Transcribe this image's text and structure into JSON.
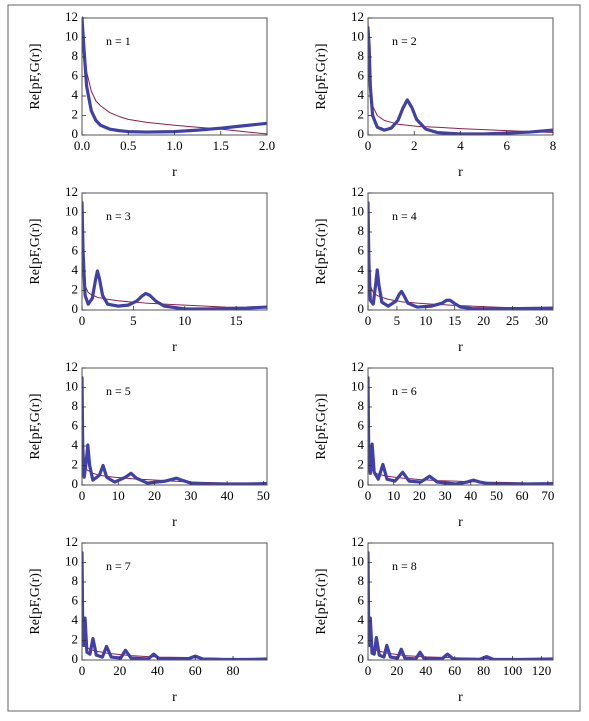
{
  "chart_data": [
    {
      "type": "line",
      "annotation": "n = 1",
      "xlabel": "r",
      "ylabel": "Re[pF,G(r)]",
      "xlim": [
        0,
        2
      ],
      "xticks": [
        {
          "value": 0,
          "label": "0.0"
        },
        {
          "value": 0.5,
          "label": "0.5"
        },
        {
          "value": 1,
          "label": "1.0"
        },
        {
          "value": 1.5,
          "label": "1.5"
        },
        {
          "value": 2,
          "label": "2.0"
        }
      ],
      "ylim": [
        0,
        12
      ],
      "yticks": [
        0,
        2,
        4,
        6,
        8,
        10,
        12
      ],
      "x": [
        0,
        0.02,
        0.05,
        0.1,
        0.15,
        0.2,
        0.3,
        0.4,
        0.5,
        0.7,
        1.0,
        1.25,
        1.5,
        1.75,
        2.0
      ],
      "series": [
        {
          "color": "#8b2252",
          "values": [
            12,
            10,
            6.5,
            4.5,
            3.5,
            3,
            2.3,
            1.9,
            1.6,
            1.3,
            1.0,
            0.8,
            0.6,
            0.35,
            0.1
          ]
        },
        {
          "color": "#4040a8",
          "values": [
            12,
            9,
            5,
            2.5,
            1.5,
            1,
            0.6,
            0.45,
            0.35,
            0.3,
            0.35,
            0.5,
            0.7,
            0.95,
            1.2
          ]
        }
      ]
    },
    {
      "type": "line",
      "annotation": "n = 2",
      "xlabel": "r",
      "ylabel": "Re[pF,G(r)]",
      "xlim": [
        0,
        8
      ],
      "xticks": [
        0,
        2,
        4,
        6,
        8
      ],
      "ylim": [
        0,
        12
      ],
      "yticks": [
        0,
        2,
        4,
        6,
        8,
        10,
        12
      ],
      "x": [
        0,
        0.05,
        0.1,
        0.2,
        0.4,
        0.7,
        1.0,
        1.3,
        1.5,
        1.7,
        1.9,
        2.1,
        2.5,
        3,
        4,
        5,
        6,
        7,
        8
      ],
      "series": [
        {
          "color": "#8b2252",
          "values": [
            12,
            8,
            5,
            3,
            2,
            1.5,
            1.3,
            1.1,
            1.05,
            1.0,
            0.95,
            0.9,
            0.85,
            0.8,
            0.65,
            0.55,
            0.45,
            0.35,
            0.25
          ]
        },
        {
          "color": "#4040a8",
          "values": [
            11,
            9,
            5,
            2,
            0.8,
            0.5,
            0.7,
            1.5,
            2.7,
            3.6,
            2.8,
            1.6,
            0.6,
            0.25,
            0.1,
            0.1,
            0.2,
            0.3,
            0.5
          ]
        }
      ]
    },
    {
      "type": "line",
      "annotation": "n = 3",
      "xlabel": "r",
      "ylabel": "Re[pF,G(r)]",
      "xlim": [
        0,
        18
      ],
      "xticks": [
        0,
        5,
        10,
        15
      ],
      "ylim": [
        0,
        12
      ],
      "yticks": [
        0,
        2,
        4,
        6,
        8,
        10,
        12
      ],
      "x": [
        0,
        0.1,
        0.3,
        0.6,
        1.0,
        1.3,
        1.5,
        1.7,
        2.0,
        2.5,
        3.5,
        4.5,
        5.3,
        5.8,
        6.2,
        6.6,
        7.2,
        8,
        10,
        12,
        14,
        16,
        18
      ],
      "series": [
        {
          "color": "#8b2252",
          "values": [
            12,
            5,
            2.5,
            1.8,
            1.5,
            1.4,
            1.3,
            1.25,
            1.2,
            1.1,
            0.95,
            0.85,
            0.8,
            0.75,
            0.7,
            0.68,
            0.65,
            0.6,
            0.5,
            0.4,
            0.3,
            0.25,
            0.2
          ]
        },
        {
          "color": "#4040a8",
          "values": [
            11,
            6,
            1.5,
            0.6,
            1.2,
            3,
            4,
            3.2,
            1.5,
            0.6,
            0.4,
            0.5,
            0.9,
            1.4,
            1.7,
            1.5,
            0.9,
            0.4,
            0.1,
            0.1,
            0.15,
            0.2,
            0.3
          ]
        }
      ]
    },
    {
      "type": "line",
      "annotation": "n = 4",
      "xlabel": "r",
      "ylabel": "Re[pF,G(r)]",
      "xlim": [
        0,
        32
      ],
      "xticks": [
        0,
        5,
        10,
        15,
        20,
        25,
        30
      ],
      "ylim": [
        0,
        12
      ],
      "yticks": [
        0,
        2,
        4,
        6,
        8,
        10,
        12
      ],
      "x": [
        0,
        0.15,
        0.4,
        0.9,
        1.3,
        1.6,
        1.9,
        2.4,
        3.5,
        4.8,
        5.4,
        5.8,
        6.2,
        6.9,
        8.5,
        11,
        12.8,
        13.6,
        14.2,
        14.9,
        16,
        18,
        22,
        26,
        32
      ],
      "series": [
        {
          "color": "#8b2252",
          "values": [
            12,
            4,
            2.5,
            1.8,
            1.6,
            1.5,
            1.4,
            1.3,
            1.1,
            0.95,
            0.9,
            0.85,
            0.82,
            0.8,
            0.7,
            0.6,
            0.55,
            0.52,
            0.5,
            0.48,
            0.45,
            0.4,
            0.3,
            0.2,
            0.1
          ]
        },
        {
          "color": "#4040a8",
          "values": [
            11,
            5,
            1,
            0.6,
            2.5,
            4.1,
            2.5,
            0.8,
            0.4,
            0.9,
            1.6,
            1.9,
            1.5,
            0.7,
            0.3,
            0.4,
            0.7,
            1.0,
            1.0,
            0.7,
            0.3,
            0.15,
            0.1,
            0.15,
            0.2
          ]
        }
      ]
    },
    {
      "type": "line",
      "annotation": "n = 5",
      "xlabel": "r",
      "ylabel": "Re[pF,G(r)]",
      "xlim": [
        0,
        51
      ],
      "xticks": [
        0,
        10,
        20,
        30,
        40,
        50
      ],
      "ylim": [
        0,
        12
      ],
      "yticks": [
        0,
        2,
        4,
        6,
        8,
        10,
        12
      ],
      "x": [
        0,
        0.2,
        0.6,
        1.2,
        1.6,
        2.1,
        3,
        4.8,
        5.8,
        6.8,
        9,
        12,
        13.5,
        15,
        18,
        23,
        25,
        26,
        27.5,
        30,
        35,
        40,
        45,
        51
      ],
      "series": [
        {
          "color": "#8b2252",
          "values": [
            12,
            3.5,
            2,
            1.6,
            1.5,
            1.4,
            1.2,
            1,
            0.95,
            0.9,
            0.8,
            0.7,
            0.65,
            0.6,
            0.55,
            0.45,
            0.4,
            0.38,
            0.35,
            0.3,
            0.25,
            0.2,
            0.15,
            0.1
          ]
        },
        {
          "color": "#4040a8",
          "values": [
            11,
            4,
            0.8,
            2.5,
            4.1,
            2,
            0.5,
            1,
            2,
            0.8,
            0.3,
            0.8,
            1.2,
            0.7,
            0.2,
            0.4,
            0.6,
            0.7,
            0.5,
            0.2,
            0.1,
            0.1,
            0.1,
            0.15
          ]
        }
      ]
    },
    {
      "type": "line",
      "annotation": "n = 6",
      "xlabel": "r",
      "ylabel": "Re[pF,G(r)]",
      "xlim": [
        0,
        72
      ],
      "xticks": [
        0,
        10,
        20,
        30,
        40,
        50,
        60,
        70
      ],
      "ylim": [
        0,
        12
      ],
      "yticks": [
        0,
        2,
        4,
        6,
        8,
        10,
        12
      ],
      "x": [
        0,
        0.3,
        0.9,
        1.6,
        2.4,
        4,
        5.8,
        7.4,
        10.5,
        13.5,
        16,
        20.5,
        24,
        27,
        34,
        38.5,
        41,
        43.5,
        48,
        55,
        62,
        72
      ],
      "series": [
        {
          "color": "#8b2252",
          "values": [
            12,
            3,
            1.8,
            1.5,
            1.3,
            1.1,
            1,
            0.9,
            0.8,
            0.7,
            0.65,
            0.55,
            0.5,
            0.45,
            0.4,
            0.35,
            0.33,
            0.3,
            0.28,
            0.25,
            0.2,
            0.1
          ]
        },
        {
          "color": "#4040a8",
          "values": [
            11,
            3,
            1.2,
            4.2,
            1.3,
            0.6,
            2.1,
            0.6,
            0.4,
            1.3,
            0.4,
            0.3,
            0.9,
            0.3,
            0.1,
            0.3,
            0.5,
            0.3,
            0.1,
            0.1,
            0.1,
            0.15
          ]
        }
      ]
    },
    {
      "type": "line",
      "annotation": "n = 7",
      "xlabel": "r",
      "ylabel": "Re[pF,G(r)]",
      "xlim": [
        0,
        98
      ],
      "xticks": [
        0,
        20,
        40,
        60,
        80
      ],
      "ylim": [
        0,
        12
      ],
      "yticks": [
        0,
        2,
        4,
        6,
        8,
        10,
        12
      ],
      "x": [
        0,
        0.4,
        1,
        1.6,
        2.6,
        4.2,
        5.8,
        7.6,
        10.8,
        13,
        15.5,
        20.5,
        23,
        26,
        35,
        38,
        41,
        56,
        60,
        64,
        75,
        87,
        98
      ],
      "series": [
        {
          "color": "#8b2252",
          "values": [
            12,
            2.5,
            1.7,
            1.5,
            1.3,
            1.1,
            1,
            0.9,
            0.8,
            0.7,
            0.65,
            0.55,
            0.5,
            0.45,
            0.35,
            0.33,
            0.3,
            0.25,
            0.22,
            0.2,
            0.15,
            0.1,
            0.05
          ]
        },
        {
          "color": "#4040a8",
          "values": [
            11,
            2.5,
            1.5,
            4.3,
            0.8,
            0.6,
            2.2,
            0.5,
            0.3,
            1.4,
            0.3,
            0.2,
            1.0,
            0.2,
            0.1,
            0.6,
            0.1,
            0.1,
            0.4,
            0.1,
            0.05,
            0.05,
            0.1
          ]
        }
      ]
    },
    {
      "type": "line",
      "annotation": "n = 8",
      "xlabel": "r",
      "ylabel": "Re[pF,G(r)]",
      "xlim": [
        0,
        128
      ],
      "xticks": [
        0,
        20,
        40,
        60,
        80,
        100,
        120
      ],
      "ylim": [
        0,
        12
      ],
      "yticks": [
        0,
        2,
        4,
        6,
        8,
        10,
        12
      ],
      "x": [
        0,
        0.5,
        1.1,
        1.6,
        2.8,
        4.3,
        5.8,
        7.8,
        11,
        13,
        15.5,
        20.5,
        23,
        25.5,
        33,
        36,
        39,
        51,
        55,
        59,
        77,
        82,
        87,
        105,
        128
      ],
      "series": [
        {
          "color": "#8b2252",
          "values": [
            12,
            2.5,
            1.7,
            1.5,
            1.3,
            1.1,
            1,
            0.9,
            0.8,
            0.7,
            0.65,
            0.55,
            0.5,
            0.45,
            0.38,
            0.35,
            0.32,
            0.27,
            0.25,
            0.23,
            0.17,
            0.15,
            0.13,
            0.08,
            0.05
          ]
        },
        {
          "color": "#4040a8",
          "values": [
            11,
            2.5,
            1.5,
            4.3,
            0.7,
            0.6,
            2.3,
            0.5,
            0.3,
            1.5,
            0.3,
            0.2,
            1.1,
            0.2,
            0.1,
            0.8,
            0.1,
            0.1,
            0.6,
            0.1,
            0.05,
            0.35,
            0.05,
            0.05,
            0.1
          ]
        }
      ]
    }
  ]
}
